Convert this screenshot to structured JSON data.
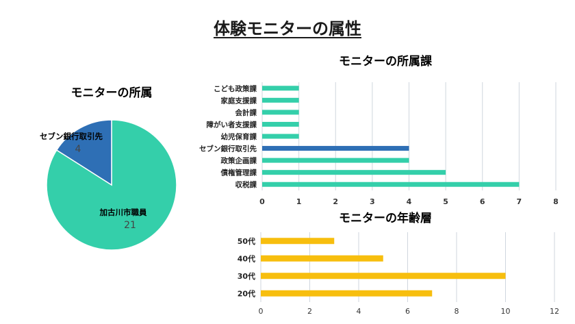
{
  "title": "体験モニターの属性",
  "chart_data": [
    {
      "type": "pie",
      "title": "モニターの所属",
      "slices": [
        {
          "label": "加古川市職員",
          "value": 21,
          "color": "#34cfaa"
        },
        {
          "label": "セブン銀行取引先",
          "value": 4,
          "color": "#2e6fb5"
        }
      ]
    },
    {
      "type": "bar",
      "orientation": "horizontal",
      "title": "モニターの所属課",
      "categories": [
        "こども政策課",
        "家庭支援課",
        "会計課",
        "障がい者支援課",
        "幼児保育課",
        "セブン銀行取引先",
        "政策企画課",
        "債権管理課",
        "収税課"
      ],
      "values": [
        1,
        1,
        1,
        1,
        1,
        4,
        4,
        5,
        7
      ],
      "highlight": "セブン銀行取引先",
      "xlim": [
        0,
        8
      ],
      "xticks": [
        0,
        1,
        2,
        3,
        4,
        5,
        6,
        7,
        8
      ],
      "color": "#34cfaa",
      "highlight_color": "#2e6fb5",
      "grid": true
    },
    {
      "type": "bar",
      "orientation": "horizontal",
      "title": "モニターの年齢層",
      "categories": [
        "50代",
        "40代",
        "30代",
        "20代"
      ],
      "values": [
        3,
        5,
        10,
        7
      ],
      "xlim": [
        0,
        12
      ],
      "xticks": [
        0,
        2,
        4,
        6,
        8,
        10,
        12
      ],
      "color": "#f7be0e",
      "grid": true
    }
  ]
}
